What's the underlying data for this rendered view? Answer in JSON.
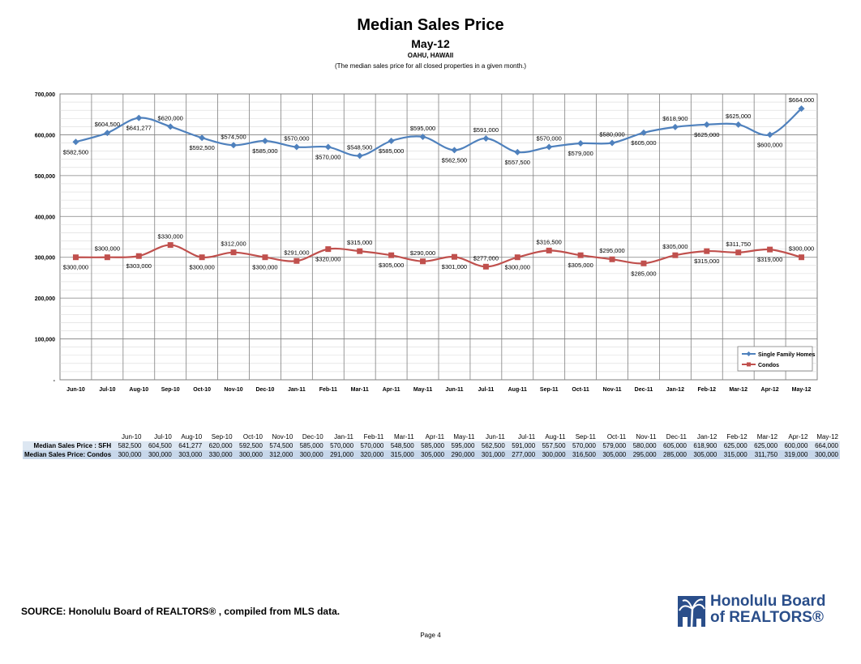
{
  "header": {
    "title": "Median Sales Price",
    "subtitle": "May-12",
    "location": "OAHU, HAWAII",
    "note": "(The median sales price for all closed properties in a given month.)"
  },
  "chart_data": {
    "type": "line",
    "categories": [
      "Jun-10",
      "Jul-10",
      "Aug-10",
      "Sep-10",
      "Oct-10",
      "Nov-10",
      "Dec-10",
      "Jan-11",
      "Feb-11",
      "Mar-11",
      "Apr-11",
      "May-11",
      "Jun-11",
      "Jul-11",
      "Aug-11",
      "Sep-11",
      "Oct-11",
      "Nov-11",
      "Dec-11",
      "Jan-12",
      "Feb-12",
      "Mar-12",
      "Apr-12",
      "May-12"
    ],
    "series": [
      {
        "name": "Single Family Homes",
        "color": "#4f81bd",
        "marker": "diamond",
        "values": [
          582500,
          604500,
          641277,
          620000,
          592500,
          574500,
          585000,
          570000,
          570000,
          548500,
          585000,
          595000,
          562500,
          591000,
          557500,
          570000,
          579000,
          580000,
          605000,
          618900,
          625000,
          625000,
          600000,
          664000
        ],
        "labels": [
          "$582,500",
          "$604,500",
          "$641,277",
          "$620,000",
          "$592,500",
          "$574,500",
          "$585,000",
          "$570,000",
          "$570,000",
          "$548,500",
          "$585,000",
          "$595,000",
          "$562,500",
          "$591,000",
          "$557,500",
          "$570,000",
          "$579,000",
          "$580,000",
          "$605,000",
          "$618,900",
          "$625,000",
          "$625,000",
          "$600,000",
          "$664,000"
        ]
      },
      {
        "name": "Condos",
        "color": "#c0504d",
        "marker": "square",
        "values": [
          300000,
          300000,
          303000,
          330000,
          300000,
          312000,
          300000,
          291000,
          320000,
          315000,
          305000,
          290000,
          301000,
          277000,
          300000,
          316500,
          305000,
          295000,
          285000,
          305000,
          315000,
          311750,
          319000,
          300000
        ],
        "labels": [
          "$300,000",
          "$300,000",
          "$303,000",
          "$330,000",
          "$300,000",
          "$312,000",
          "$300,000",
          "$291,000",
          "$320,000",
          "$315,000",
          "$305,000",
          "$290,000",
          "$301,000",
          "$277,000",
          "$300,000",
          "$316,500",
          "$305,000",
          "$295,000",
          "$285,000",
          "$305,000",
          "$315,000",
          "$311,750",
          "$319,000",
          "$300,000"
        ]
      }
    ],
    "ylim": [
      0,
      700000
    ],
    "yticks": [
      0,
      100000,
      200000,
      300000,
      400000,
      500000,
      600000,
      700000
    ],
    "ytick_labels": [
      "-",
      "100,000",
      "200,000",
      "300,000",
      "400,000",
      "500,000",
      "600,000",
      "700,000"
    ],
    "grid": true,
    "legend": "bottom-right"
  },
  "table": {
    "header": [
      "Jun-10",
      "Jul-10",
      "Aug-10",
      "Sep-10",
      "Oct-10",
      "Nov-10",
      "Dec-10",
      "Jan-11",
      "Feb-11",
      "Mar-11",
      "Apr-11",
      "May-11",
      "Jun-11",
      "Jul-11",
      "Aug-11",
      "Sep-11",
      "Oct-11",
      "Nov-11",
      "Dec-11",
      "Jan-12",
      "Feb-12",
      "Mar-12",
      "Apr-12",
      "May-12"
    ],
    "rows": [
      {
        "label": "Median Sales Price : SFH",
        "values": [
          "582,500",
          "604,500",
          "641,277",
          "620,000",
          "592,500",
          "574,500",
          "585,000",
          "570,000",
          "570,000",
          "548,500",
          "585,000",
          "595,000",
          "562,500",
          "591,000",
          "557,500",
          "570,000",
          "579,000",
          "580,000",
          "605,000",
          "618,900",
          "625,000",
          "625,000",
          "600,000",
          "664,000"
        ]
      },
      {
        "label": "Median Sales Price: Condos",
        "values": [
          "300,000",
          "300,000",
          "303,000",
          "330,000",
          "300,000",
          "312,000",
          "300,000",
          "291,000",
          "320,000",
          "315,000",
          "305,000",
          "290,000",
          "301,000",
          "277,000",
          "300,000",
          "316,500",
          "305,000",
          "295,000",
          "285,000",
          "305,000",
          "315,000",
          "311,750",
          "319,000",
          "300,000"
        ]
      }
    ]
  },
  "footer": {
    "source": "SOURCE:  Honolulu Board of REALTORS® , compiled from MLS data.",
    "page": "Page 4",
    "logo_line1": "Honolulu Board",
    "logo_line2": "of REALTORS®"
  }
}
